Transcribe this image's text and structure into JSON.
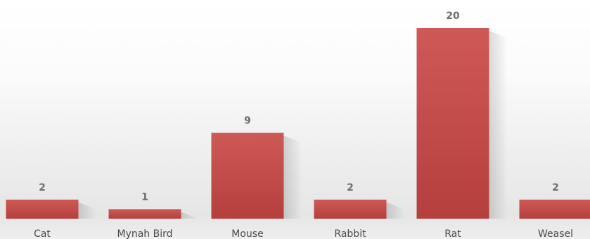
{
  "chart_data": {
    "type": "bar",
    "categories": [
      "Cat",
      "Mynah Bird",
      "Mouse",
      "Rabbit",
      "Rat",
      "Weasel"
    ],
    "values": [
      2,
      1,
      9,
      2,
      20,
      2
    ],
    "data_labels": [
      "2",
      "1",
      "9",
      "2",
      "20",
      "2"
    ],
    "title": "",
    "xlabel": "",
    "ylabel": "",
    "ylim": [
      0,
      20
    ],
    "grid": false,
    "legend": "none",
    "colors": {
      "bar": "#c0504d",
      "bar_top": "#cd5a56",
      "bar_bottom": "#b4403d",
      "value_label": "#6e6e6e",
      "category_label": "#4a4a4a"
    }
  }
}
